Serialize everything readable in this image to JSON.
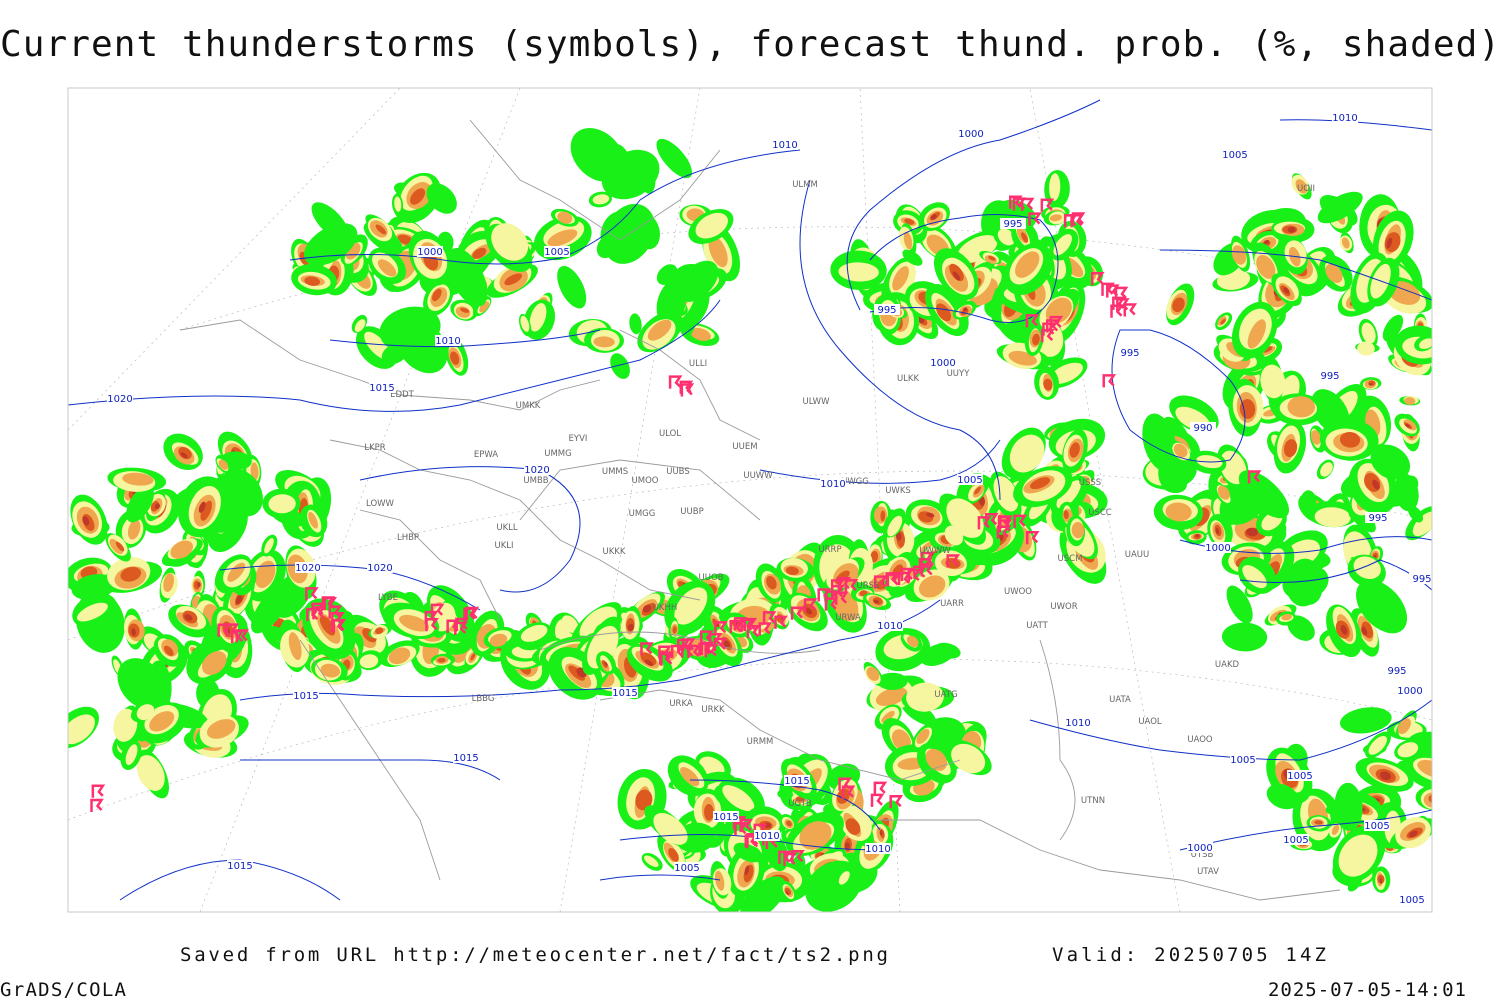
{
  "title": "Current thunderstorms (symbols), forecast thund. prob. (%, shaded)",
  "footer": {
    "source": "Saved from URL http://meteocenter.net/fact/ts2.png",
    "valid": "Valid: 20250705 14Z",
    "credit": "GrADS/COLA",
    "timestamp": "2025-07-05-14:01"
  },
  "isobar_labels": [
    "1010",
    "1000",
    "1010",
    "1005",
    "1000",
    "1005",
    "995",
    "995",
    "1010",
    "1000",
    "1015",
    "1020",
    "995",
    "995",
    "990",
    "1020",
    "1010",
    "1005",
    "995",
    "1000",
    "995",
    "1020",
    "1020",
    "1010",
    "1015",
    "1015",
    "995",
    "1000",
    "1010",
    "1005",
    "1015",
    "1015",
    "1005",
    "1015",
    "1010",
    "1005",
    "1005",
    "1000",
    "1010",
    "1005",
    "1015",
    "1005"
  ],
  "station_labels": [
    "EDDT",
    "UMKK",
    "EYVI",
    "ULOL",
    "UUEM",
    "LKPR",
    "EPWA",
    "UMMG",
    "ULWW",
    "ULKK",
    "UUYY",
    "UMMS",
    "UMOO",
    "UUBS",
    "UUWW",
    "UWGG",
    "UWKS",
    "UMBB",
    "LOWW",
    "UMGG",
    "UUBP",
    "UKLL",
    "UKLI",
    "LHBP",
    "UKKK",
    "UUOB",
    "URRP",
    "UWWW",
    "USCM",
    "UAUU",
    "URSS",
    "UARR",
    "UWOO",
    "UWOR",
    "UKHH",
    "LYBE",
    "UATT",
    "URWA",
    "UAKD",
    "UATG",
    "URKA",
    "URKK",
    "LBBG",
    "UATA",
    "UAOL",
    "UAOO",
    "URMM",
    "UGTB",
    "UTNN",
    "UTSB",
    "UTAV",
    "ULLI",
    "ULMM",
    "USSS",
    "USCC",
    "UOII"
  ]
}
